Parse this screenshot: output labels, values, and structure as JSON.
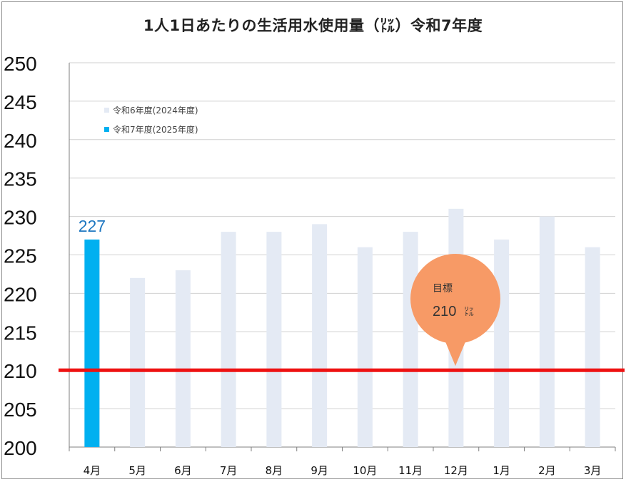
{
  "chart_data": {
    "type": "bar",
    "title": "1人1日あたりの生活用水使用量（㍑）令和7年度",
    "categories": [
      "4月",
      "5月",
      "6月",
      "7月",
      "8月",
      "9月",
      "10月",
      "11月",
      "12月",
      "1月",
      "2月",
      "3月"
    ],
    "series": [
      {
        "name": "令和6年度(2024年度)",
        "color": "#e4eaf4",
        "values": [
          227,
          222,
          223,
          228,
          228,
          229,
          226,
          228,
          231,
          227,
          230,
          226
        ]
      },
      {
        "name": "令和7年度(2025年度)",
        "color": "#00b0f0",
        "values": [
          227,
          null,
          null,
          null,
          null,
          null,
          null,
          null,
          null,
          null,
          null,
          null
        ]
      }
    ],
    "ylim": [
      200,
      250
    ],
    "yticks": [
      200,
      205,
      210,
      215,
      220,
      225,
      230,
      235,
      240,
      245,
      250
    ],
    "grid": true,
    "legend": "top-left",
    "data_labels": [
      {
        "series": 1,
        "category": "4月",
        "text": "227",
        "color": "#1f78c1"
      }
    ],
    "target": {
      "value": 210,
      "color": "#ee1111",
      "callout_label": "目標",
      "callout_value": "210",
      "callout_unit": "㍑",
      "callout_color": "#f79a66"
    }
  }
}
